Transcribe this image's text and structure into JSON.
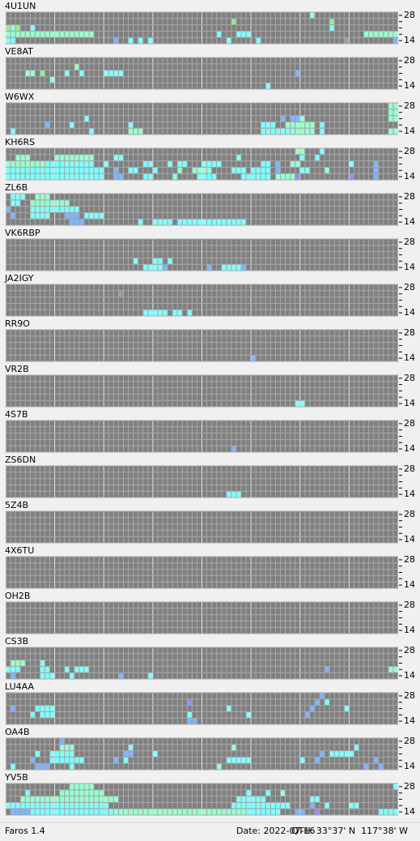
{
  "app": {
    "title": "Faros 1.4"
  },
  "status": {
    "date": "Date: 2022-07-16",
    "qth": "QTH: 33°37' N  117°38' W"
  },
  "band_labels": [
    28,
    14
  ],
  "level_colors": [
    "#a0a0a0",
    "#9090f0",
    "#80b4ff",
    "#80ffff",
    "#98ffd0",
    "#90f090"
  ],
  "stations": [
    {
      "name": "4U1UN",
      "signals": [
        [
          0,
          62,
          1,
          4
        ],
        [
          1,
          46,
          1,
          5
        ],
        [
          1,
          66,
          1,
          5
        ],
        [
          2,
          0,
          1,
          5
        ],
        [
          2,
          1,
          1,
          4
        ],
        [
          2,
          2,
          1,
          5
        ],
        [
          2,
          5,
          1,
          3
        ],
        [
          2,
          66,
          1,
          3
        ],
        [
          3,
          0,
          18,
          4
        ],
        [
          3,
          43,
          1,
          3
        ],
        [
          3,
          47,
          3,
          3
        ],
        [
          3,
          73,
          7,
          4
        ],
        [
          4,
          0,
          2,
          3
        ],
        [
          4,
          22,
          1,
          2
        ],
        [
          4,
          25,
          1,
          3
        ],
        [
          4,
          27,
          1,
          3
        ],
        [
          4,
          29,
          1,
          3
        ],
        [
          4,
          45,
          1,
          3
        ],
        [
          4,
          51,
          1,
          3
        ],
        [
          4,
          69,
          1,
          0
        ],
        [
          4,
          79,
          1,
          2
        ]
      ]
    },
    {
      "name": "VE8AT",
      "signals": [
        [
          1,
          14,
          1,
          4
        ],
        [
          2,
          4,
          2,
          4
        ],
        [
          2,
          7,
          1,
          5
        ],
        [
          2,
          12,
          1,
          3
        ],
        [
          2,
          15,
          1,
          3
        ],
        [
          2,
          20,
          4,
          3
        ],
        [
          2,
          59,
          1,
          2
        ],
        [
          3,
          9,
          1,
          3
        ],
        [
          4,
          53,
          1,
          3
        ]
      ]
    },
    {
      "name": "W6WX",
      "signals": [
        [
          0,
          78,
          2,
          4
        ],
        [
          1,
          78,
          2,
          4
        ],
        [
          2,
          16,
          1,
          3
        ],
        [
          2,
          56,
          1,
          2
        ],
        [
          2,
          58,
          2,
          2
        ],
        [
          2,
          60,
          1,
          4
        ],
        [
          2,
          78,
          2,
          4
        ],
        [
          3,
          8,
          1,
          2
        ],
        [
          3,
          13,
          1,
          3
        ],
        [
          3,
          25,
          1,
          3
        ],
        [
          3,
          52,
          3,
          3
        ],
        [
          3,
          57,
          6,
          4
        ],
        [
          3,
          64,
          1,
          3
        ],
        [
          4,
          1,
          1,
          3
        ],
        [
          4,
          17,
          1,
          3
        ],
        [
          4,
          25,
          3,
          4
        ],
        [
          4,
          52,
          6,
          3
        ],
        [
          4,
          58,
          5,
          4
        ],
        [
          4,
          64,
          1,
          3
        ],
        [
          4,
          78,
          2,
          4
        ]
      ]
    },
    {
      "name": "KH6RS",
      "signals": [
        [
          0,
          59,
          2,
          4
        ],
        [
          0,
          64,
          1,
          3
        ],
        [
          1,
          2,
          3,
          4
        ],
        [
          1,
          10,
          8,
          4
        ],
        [
          1,
          22,
          2,
          3
        ],
        [
          1,
          47,
          1,
          3
        ],
        [
          1,
          60,
          1,
          3
        ],
        [
          1,
          63,
          1,
          3
        ],
        [
          2,
          0,
          8,
          4
        ],
        [
          2,
          8,
          10,
          3
        ],
        [
          2,
          20,
          1,
          3
        ],
        [
          2,
          28,
          2,
          3
        ],
        [
          2,
          33,
          1,
          3
        ],
        [
          2,
          35,
          2,
          3
        ],
        [
          2,
          40,
          4,
          3
        ],
        [
          2,
          52,
          2,
          3
        ],
        [
          2,
          55,
          1,
          2
        ],
        [
          2,
          58,
          2,
          4
        ],
        [
          2,
          70,
          1,
          3
        ],
        [
          2,
          75,
          1,
          2
        ],
        [
          3,
          0,
          20,
          3
        ],
        [
          3,
          22,
          1,
          2
        ],
        [
          3,
          25,
          2,
          3
        ],
        [
          3,
          30,
          1,
          3
        ],
        [
          3,
          35,
          1,
          4
        ],
        [
          3,
          38,
          4,
          4
        ],
        [
          3,
          46,
          3,
          3
        ],
        [
          3,
          50,
          4,
          3
        ],
        [
          3,
          55,
          1,
          2
        ],
        [
          3,
          60,
          2,
          3
        ],
        [
          3,
          65,
          1,
          4
        ],
        [
          3,
          75,
          1,
          2
        ],
        [
          4,
          0,
          20,
          3
        ],
        [
          4,
          22,
          2,
          2
        ],
        [
          4,
          28,
          2,
          3
        ],
        [
          4,
          34,
          1,
          3
        ],
        [
          4,
          39,
          4,
          3
        ],
        [
          4,
          48,
          6,
          3
        ],
        [
          4,
          55,
          4,
          4
        ],
        [
          4,
          59,
          1,
          1
        ],
        [
          4,
          70,
          1,
          1
        ],
        [
          4,
          75,
          1,
          2
        ]
      ]
    },
    {
      "name": "ZL6B",
      "signals": [
        [
          0,
          1,
          3,
          3
        ],
        [
          0,
          6,
          3,
          4
        ],
        [
          1,
          1,
          2,
          3
        ],
        [
          1,
          5,
          8,
          4
        ],
        [
          2,
          0,
          1,
          2
        ],
        [
          2,
          5,
          10,
          3
        ],
        [
          3,
          1,
          1,
          2
        ],
        [
          3,
          5,
          4,
          3
        ],
        [
          3,
          12,
          3,
          2
        ],
        [
          3,
          16,
          4,
          3
        ],
        [
          4,
          13,
          3,
          2
        ],
        [
          4,
          27,
          1,
          3
        ],
        [
          4,
          30,
          4,
          3
        ],
        [
          4,
          35,
          10,
          3
        ],
        [
          4,
          45,
          4,
          3
        ]
      ]
    },
    {
      "name": "VK6RBP",
      "signals": [
        [
          3,
          26,
          1,
          3
        ],
        [
          3,
          30,
          2,
          3
        ],
        [
          3,
          33,
          1,
          3
        ],
        [
          4,
          28,
          4,
          3
        ],
        [
          4,
          32,
          1,
          2
        ],
        [
          4,
          41,
          1,
          2
        ],
        [
          4,
          44,
          4,
          3
        ],
        [
          4,
          48,
          1,
          2
        ]
      ]
    },
    {
      "name": "JA2IGY",
      "signals": [
        [
          1,
          23,
          1,
          0
        ],
        [
          4,
          28,
          4,
          3
        ],
        [
          4,
          32,
          1,
          3
        ],
        [
          4,
          34,
          2,
          3
        ],
        [
          4,
          37,
          1,
          3
        ]
      ]
    },
    {
      "name": "RR9O",
      "signals": [
        [
          4,
          50,
          1,
          2
        ]
      ]
    },
    {
      "name": "VR2B",
      "signals": [
        [
          4,
          59,
          2,
          3
        ]
      ]
    },
    {
      "name": "4S7B",
      "signals": [
        [
          4,
          46,
          1,
          2
        ]
      ]
    },
    {
      "name": "ZS6DN",
      "signals": [
        [
          4,
          45,
          3,
          3
        ]
      ]
    },
    {
      "name": "5Z4B",
      "signals": []
    },
    {
      "name": "4X6TU",
      "signals": []
    },
    {
      "name": "OH2B",
      "signals": []
    },
    {
      "name": "CS3B",
      "signals": [
        [
          2,
          1,
          3,
          4
        ],
        [
          2,
          7,
          1,
          3
        ],
        [
          3,
          0,
          3,
          3
        ],
        [
          3,
          7,
          2,
          3
        ],
        [
          3,
          12,
          1,
          3
        ],
        [
          3,
          14,
          3,
          3
        ],
        [
          3,
          65,
          1,
          2
        ],
        [
          3,
          78,
          2,
          4
        ],
        [
          4,
          1,
          1,
          2
        ],
        [
          4,
          7,
          3,
          3
        ],
        [
          4,
          13,
          1,
          3
        ],
        [
          4,
          23,
          1,
          2
        ],
        [
          4,
          29,
          1,
          3
        ]
      ]
    },
    {
      "name": "LU4AA",
      "signals": [
        [
          0,
          64,
          1,
          2
        ],
        [
          1,
          37,
          1,
          1
        ],
        [
          1,
          63,
          1,
          2
        ],
        [
          1,
          65,
          1,
          3
        ],
        [
          2,
          1,
          1,
          2
        ],
        [
          2,
          6,
          4,
          3
        ],
        [
          2,
          45,
          1,
          3
        ],
        [
          2,
          62,
          1,
          2
        ],
        [
          2,
          69,
          1,
          3
        ],
        [
          3,
          5,
          1,
          3
        ],
        [
          3,
          7,
          3,
          3
        ],
        [
          3,
          37,
          1,
          3
        ],
        [
          3,
          49,
          1,
          3
        ],
        [
          3,
          61,
          1,
          2
        ],
        [
          4,
          37,
          2,
          2
        ]
      ]
    },
    {
      "name": "OA4B",
      "signals": [
        [
          0,
          11,
          1,
          2
        ],
        [
          1,
          11,
          3,
          4
        ],
        [
          1,
          25,
          1,
          3
        ],
        [
          1,
          46,
          1,
          4
        ],
        [
          1,
          71,
          1,
          3
        ],
        [
          2,
          6,
          1,
          3
        ],
        [
          2,
          9,
          5,
          3
        ],
        [
          2,
          24,
          2,
          2
        ],
        [
          2,
          30,
          1,
          3
        ],
        [
          2,
          64,
          1,
          2
        ],
        [
          2,
          66,
          5,
          3
        ],
        [
          3,
          5,
          1,
          2
        ],
        [
          3,
          9,
          7,
          3
        ],
        [
          3,
          22,
          1,
          2
        ],
        [
          3,
          24,
          1,
          3
        ],
        [
          3,
          45,
          5,
          3
        ],
        [
          3,
          60,
          1,
          3
        ],
        [
          3,
          63,
          1,
          2
        ],
        [
          3,
          75,
          1,
          2
        ],
        [
          4,
          1,
          1,
          3
        ],
        [
          4,
          6,
          3,
          2
        ],
        [
          4,
          13,
          1,
          3
        ],
        [
          4,
          43,
          1,
          4
        ],
        [
          4,
          73,
          1,
          2
        ],
        [
          4,
          76,
          1,
          2
        ]
      ]
    },
    {
      "name": "YV5B",
      "signals": [
        [
          0,
          13,
          5,
          4
        ],
        [
          0,
          79,
          1,
          3
        ],
        [
          1,
          4,
          1,
          3
        ],
        [
          1,
          11,
          9,
          4
        ],
        [
          1,
          49,
          1,
          3
        ],
        [
          1,
          53,
          1,
          3
        ],
        [
          1,
          56,
          1,
          4
        ],
        [
          2,
          3,
          20,
          4
        ],
        [
          2,
          47,
          6,
          3
        ],
        [
          2,
          62,
          2,
          3
        ],
        [
          3,
          0,
          21,
          3
        ],
        [
          3,
          46,
          12,
          3
        ],
        [
          3,
          62,
          1,
          2
        ],
        [
          3,
          65,
          1,
          3
        ],
        [
          3,
          70,
          2,
          3
        ],
        [
          4,
          1,
          4,
          2
        ],
        [
          4,
          5,
          17,
          3
        ],
        [
          4,
          22,
          27,
          4
        ],
        [
          4,
          49,
          7,
          3
        ],
        [
          4,
          59,
          2,
          2
        ],
        [
          4,
          63,
          1,
          1
        ],
        [
          4,
          76,
          4,
          3
        ]
      ]
    }
  ]
}
